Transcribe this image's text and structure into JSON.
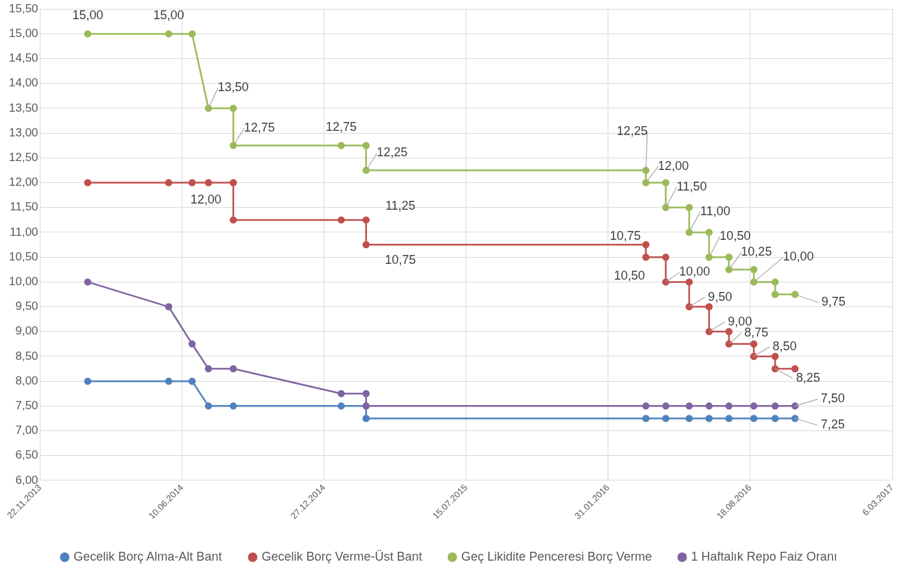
{
  "chart_data": {
    "type": "line",
    "xlim": [
      "2013-11-22",
      "2017-03-06"
    ],
    "xticks": [
      {
        "value": "2013-11-22",
        "label": "22.11.2013"
      },
      {
        "value": "2014-06-10",
        "label": "10.06.2014"
      },
      {
        "value": "2014-12-27",
        "label": "27.12.2014"
      },
      {
        "value": "2015-07-15",
        "label": "15.07.2015"
      },
      {
        "value": "2016-01-31",
        "label": "31.01.2016"
      },
      {
        "value": "2016-08-18",
        "label": "18.08.2016"
      },
      {
        "value": "2017-03-06",
        "label": "6.03.2017"
      }
    ],
    "ylim": [
      6,
      15.5
    ],
    "yticks": [
      {
        "value": 6,
        "label": "6,00"
      },
      {
        "value": 6.5,
        "label": "6,50"
      },
      {
        "value": 7,
        "label": "7,00"
      },
      {
        "value": 7.5,
        "label": "7,50"
      },
      {
        "value": 8,
        "label": "8,00"
      },
      {
        "value": 8.5,
        "label": "8,50"
      },
      {
        "value": 9,
        "label": "9,00"
      },
      {
        "value": 9.5,
        "label": "9,50"
      },
      {
        "value": 10,
        "label": "10,00"
      },
      {
        "value": 10.5,
        "label": "10,50"
      },
      {
        "value": 11,
        "label": "11,00"
      },
      {
        "value": 11.5,
        "label": "11,50"
      },
      {
        "value": 12,
        "label": "12,00"
      },
      {
        "value": 12.5,
        "label": "12,50"
      },
      {
        "value": 13,
        "label": "13,00"
      },
      {
        "value": 13.5,
        "label": "13,50"
      },
      {
        "value": 14,
        "label": "14,00"
      },
      {
        "value": 14.5,
        "label": "14,50"
      },
      {
        "value": 15,
        "label": "15,00"
      },
      {
        "value": 15.5,
        "label": "15,50"
      }
    ],
    "grid": true,
    "legend": "bottom",
    "marker": "circle",
    "line_style": "solid",
    "series": [
      {
        "name": "Gecelik Borç Alma-Alt Bant",
        "color": "#4f81bd",
        "x": [
          "2014-01-28",
          "2014-05-22",
          "2014-06-24",
          "2014-07-17",
          "2014-08-21",
          "2015-01-20",
          "2015-02-24",
          "2015-02-24",
          "2016-03-24",
          "2016-04-21",
          "2016-05-24",
          "2016-06-21",
          "2016-07-19",
          "2016-08-23",
          "2016-09-22",
          "2016-10-20"
        ],
        "values": [
          8,
          8,
          8,
          7.5,
          7.5,
          7.5,
          7.5,
          7.25,
          7.25,
          7.25,
          7.25,
          7.25,
          7.25,
          7.25,
          7.25,
          7.25
        ]
      },
      {
        "name": "Gecelik Borç Verme-Üst Bant",
        "color": "#c0504d",
        "x": [
          "2014-01-28",
          "2014-05-22",
          "2014-06-24",
          "2014-07-17",
          "2014-08-21",
          "2014-08-21",
          "2015-01-20",
          "2015-02-24",
          "2015-02-24",
          "2016-03-24",
          "2016-03-24",
          "2016-04-21",
          "2016-04-21",
          "2016-05-24",
          "2016-05-24",
          "2016-06-21",
          "2016-06-21",
          "2016-07-19",
          "2016-07-19",
          "2016-08-23",
          "2016-08-23",
          "2016-09-22",
          "2016-09-22",
          "2016-10-20"
        ],
        "values": [
          12,
          12,
          12,
          12,
          12,
          11.25,
          11.25,
          11.25,
          10.75,
          10.75,
          10.5,
          10.5,
          10,
          10,
          9.5,
          9.5,
          9,
          9,
          8.75,
          8.75,
          8.5,
          8.5,
          8.25,
          8.25
        ]
      },
      {
        "name": "Geç Likidite Penceresi Borç Verme",
        "color": "#9bbb59",
        "x": [
          "2014-01-28",
          "2014-05-22",
          "2014-06-24",
          "2014-07-17",
          "2014-08-21",
          "2014-08-21",
          "2015-01-20",
          "2015-02-24",
          "2015-02-24",
          "2016-03-24",
          "2016-03-24",
          "2016-04-21",
          "2016-04-21",
          "2016-05-24",
          "2016-05-24",
          "2016-06-21",
          "2016-06-21",
          "2016-07-19",
          "2016-07-19",
          "2016-08-23",
          "2016-08-23",
          "2016-09-22",
          "2016-09-22",
          "2016-10-20"
        ],
        "values": [
          15,
          15,
          15,
          13.5,
          13.5,
          12.75,
          12.75,
          12.75,
          12.25,
          12.25,
          12,
          12,
          11.5,
          11.5,
          11,
          11,
          10.5,
          10.5,
          10.25,
          10.25,
          10,
          10,
          9.75,
          9.75
        ]
      },
      {
        "name": "1 Haftalık Repo Faiz Oranı",
        "color": "#8064a2",
        "x": [
          "2014-01-28",
          "2014-05-22",
          "2014-06-24",
          "2014-07-17",
          "2014-08-21",
          "2015-01-20",
          "2015-02-24",
          "2015-02-24",
          "2016-03-24",
          "2016-04-21",
          "2016-05-24",
          "2016-06-21",
          "2016-07-19",
          "2016-08-23",
          "2016-09-22",
          "2016-10-20"
        ],
        "values": [
          10,
          9.5,
          8.75,
          8.25,
          8.25,
          7.75,
          7.75,
          7.5,
          7.5,
          7.5,
          7.5,
          7.5,
          7.5,
          7.5,
          7.5,
          7.5
        ]
      }
    ],
    "annotations": [
      {
        "text": "15,00",
        "x": "2014-01-28",
        "y": 15
      },
      {
        "text": "15,00",
        "x": "2014-05-22",
        "y": 15
      },
      {
        "text": "13,50",
        "x": "2014-07-17",
        "y": 13.5
      },
      {
        "text": "12,75",
        "x": "2014-08-21",
        "y": 12.75
      },
      {
        "text": "12,75",
        "x": "2015-01-20",
        "y": 12.75
      },
      {
        "text": "12,25",
        "x": "2015-02-24",
        "y": 12.25
      },
      {
        "text": "12,25",
        "x": "2016-03-24",
        "y": 12.25
      },
      {
        "text": "12,00",
        "x": "2016-03-24",
        "y": 12
      },
      {
        "text": "11,50",
        "x": "2016-04-21",
        "y": 11.5
      },
      {
        "text": "11,00",
        "x": "2016-05-24",
        "y": 11
      },
      {
        "text": "10,50",
        "x": "2016-06-21",
        "y": 10.5
      },
      {
        "text": "10,25",
        "x": "2016-07-19",
        "y": 10.25
      },
      {
        "text": "10,00",
        "x": "2016-08-23",
        "y": 10
      },
      {
        "text": "9,75",
        "x": "2016-10-20",
        "y": 9.75
      },
      {
        "text": "12,00",
        "x": "2014-08-21",
        "y": 12
      },
      {
        "text": "11,25",
        "x": "2015-02-24",
        "y": 11.25
      },
      {
        "text": "10,75",
        "x": "2015-02-24",
        "y": 10.75
      },
      {
        "text": "10,75",
        "x": "2016-03-24",
        "y": 10.75
      },
      {
        "text": "10,50",
        "x": "2016-03-24",
        "y": 10.5
      },
      {
        "text": "10,00",
        "x": "2016-04-21",
        "y": 10
      },
      {
        "text": "9,50",
        "x": "2016-05-24",
        "y": 9.5
      },
      {
        "text": "9,00",
        "x": "2016-06-21",
        "y": 9
      },
      {
        "text": "8,75",
        "x": "2016-07-19",
        "y": 8.75
      },
      {
        "text": "8,50",
        "x": "2016-08-23",
        "y": 8.5
      },
      {
        "text": "8,25",
        "x": "2016-09-22",
        "y": 8.25
      },
      {
        "text": "7,50",
        "x": "2016-10-20",
        "y": 7.5
      },
      {
        "text": "7,25",
        "x": "2016-10-20",
        "y": 7.25
      }
    ]
  }
}
